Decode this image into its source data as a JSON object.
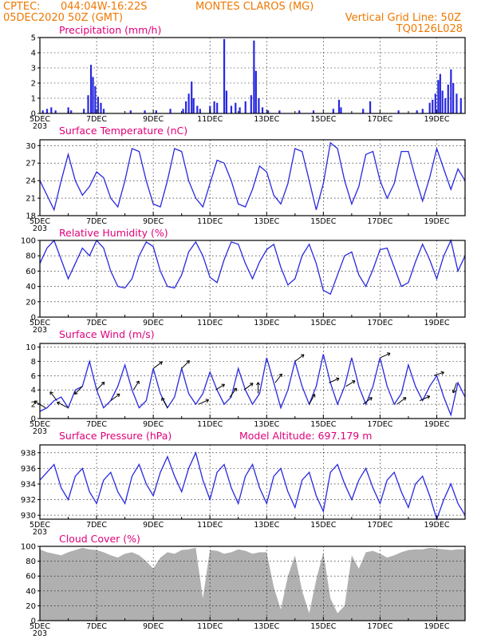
{
  "header": {
    "source": "CPTEC:",
    "location": "044:04W-16:22S",
    "city": "MONTES CLAROS (MG)",
    "run": "05DEC2020 50Z (GMT)",
    "vgrid": "Vertical Grid Line: 50Z",
    "code": "TQ0126L028"
  },
  "colors": {
    "header": "#f07800",
    "title": "#e0007a",
    "series": "#2828e0",
    "cloud": "#b0b0b0"
  },
  "chart_data": [
    {
      "type": "bar",
      "title": "Precipitation (mm/h)",
      "ylim": [
        0,
        5
      ],
      "yticks": [
        "0",
        "1",
        "2",
        "3",
        "4",
        "5"
      ],
      "xlabels": [
        "5DEC",
        "7DEC",
        "9DEC",
        "11DEC",
        "13DEC",
        "15DEC",
        "17DEC",
        "19DEC"
      ],
      "x_start_label": "203",
      "xlim_days": [
        5,
        20
      ],
      "values": [
        {
          "x": 5.1,
          "y": 0.2
        },
        {
          "x": 5.25,
          "y": 0.3
        },
        {
          "x": 5.4,
          "y": 0.4
        },
        {
          "x": 5.55,
          "y": 0.2
        },
        {
          "x": 6.0,
          "y": 0.4
        },
        {
          "x": 6.1,
          "y": 0.2
        },
        {
          "x": 6.55,
          "y": 0.3
        },
        {
          "x": 6.7,
          "y": 1.2
        },
        {
          "x": 6.8,
          "y": 3.2
        },
        {
          "x": 6.87,
          "y": 2.4
        },
        {
          "x": 6.95,
          "y": 1.8
        },
        {
          "x": 7.05,
          "y": 1.1
        },
        {
          "x": 7.15,
          "y": 0.7
        },
        {
          "x": 7.25,
          "y": 0.3
        },
        {
          "x": 8.2,
          "y": 0.2
        },
        {
          "x": 8.7,
          "y": 0.2
        },
        {
          "x": 9.1,
          "y": 0.2
        },
        {
          "x": 9.6,
          "y": 0.3
        },
        {
          "x": 10.05,
          "y": 0.3
        },
        {
          "x": 10.15,
          "y": 0.8
        },
        {
          "x": 10.25,
          "y": 1.3
        },
        {
          "x": 10.35,
          "y": 2.1
        },
        {
          "x": 10.42,
          "y": 1.0
        },
        {
          "x": 10.55,
          "y": 0.5
        },
        {
          "x": 10.65,
          "y": 0.3
        },
        {
          "x": 11.0,
          "y": 0.5
        },
        {
          "x": 11.15,
          "y": 0.8
        },
        {
          "x": 11.25,
          "y": 0.7
        },
        {
          "x": 11.5,
          "y": 4.9
        },
        {
          "x": 11.58,
          "y": 1.5
        },
        {
          "x": 11.75,
          "y": 0.5
        },
        {
          "x": 11.9,
          "y": 0.7
        },
        {
          "x": 12.05,
          "y": 0.4
        },
        {
          "x": 12.25,
          "y": 0.8
        },
        {
          "x": 12.45,
          "y": 1.2
        },
        {
          "x": 12.55,
          "y": 4.8
        },
        {
          "x": 12.62,
          "y": 2.8
        },
        {
          "x": 12.72,
          "y": 1.0
        },
        {
          "x": 12.85,
          "y": 0.4
        },
        {
          "x": 13.05,
          "y": 0.2
        },
        {
          "x": 13.45,
          "y": 0.2
        },
        {
          "x": 14.15,
          "y": 0.2
        },
        {
          "x": 14.65,
          "y": 0.2
        },
        {
          "x": 15.35,
          "y": 0.3
        },
        {
          "x": 15.55,
          "y": 0.9
        },
        {
          "x": 15.62,
          "y": 0.4
        },
        {
          "x": 16.4,
          "y": 0.3
        },
        {
          "x": 16.65,
          "y": 0.8
        },
        {
          "x": 17.65,
          "y": 0.2
        },
        {
          "x": 18.3,
          "y": 0.2
        },
        {
          "x": 18.5,
          "y": 0.3
        },
        {
          "x": 18.75,
          "y": 0.7
        },
        {
          "x": 18.85,
          "y": 0.9
        },
        {
          "x": 18.95,
          "y": 1.3
        },
        {
          "x": 19.05,
          "y": 2.2
        },
        {
          "x": 19.12,
          "y": 2.6
        },
        {
          "x": 19.2,
          "y": 1.5
        },
        {
          "x": 19.3,
          "y": 1.0
        },
        {
          "x": 19.4,
          "y": 1.9
        },
        {
          "x": 19.5,
          "y": 2.9
        },
        {
          "x": 19.58,
          "y": 2.0
        },
        {
          "x": 19.7,
          "y": 1.3
        },
        {
          "x": 19.85,
          "y": 1.0
        }
      ]
    },
    {
      "type": "line",
      "title": "Surface Temperature (nC)",
      "ylim": [
        18,
        31
      ],
      "yticks": [
        "18",
        "21",
        "24",
        "27",
        "30"
      ],
      "xlabels": [
        "5DEC",
        "7DEC",
        "9DEC",
        "11DEC",
        "13DEC",
        "15DEC",
        "17DEC",
        "19DEC"
      ],
      "x_start_label": "203",
      "x": [
        5.0,
        5.25,
        5.5,
        5.75,
        6.0,
        6.25,
        6.5,
        6.75,
        7.0,
        7.25,
        7.5,
        7.75,
        8.0,
        8.25,
        8.5,
        8.75,
        9.0,
        9.25,
        9.5,
        9.75,
        10.0,
        10.25,
        10.5,
        10.75,
        11.0,
        11.25,
        11.5,
        11.75,
        12.0,
        12.25,
        12.5,
        12.75,
        13.0,
        13.25,
        13.5,
        13.75,
        14.0,
        14.25,
        14.5,
        14.75,
        15.0,
        15.25,
        15.5,
        15.75,
        16.0,
        16.25,
        16.5,
        16.75,
        17.0,
        17.25,
        17.5,
        17.75,
        18.0,
        18.25,
        18.5,
        18.75,
        19.0,
        19.25,
        19.5,
        19.75,
        20.0
      ],
      "values": [
        24,
        21.5,
        19,
        24,
        28.5,
        24,
        21.5,
        23,
        25.5,
        24.5,
        21,
        19.5,
        24,
        29.5,
        29,
        24,
        20,
        19.5,
        24,
        29.5,
        29,
        24,
        21,
        19.5,
        23.5,
        27.5,
        27,
        24,
        20,
        19.5,
        22.5,
        26.5,
        25.5,
        21.5,
        20,
        23.5,
        29.5,
        29,
        24,
        19,
        23.5,
        30.5,
        29.5,
        24,
        20,
        23,
        28.5,
        29,
        24,
        21,
        23.5,
        29,
        29,
        24.5,
        20.5,
        24.5,
        29.5,
        26,
        22.5,
        26,
        24
      ]
    },
    {
      "type": "line",
      "title": "Relative Humidity (%)",
      "ylim": [
        0,
        100
      ],
      "yticks": [
        "0",
        "20",
        "40",
        "60",
        "80",
        "100"
      ],
      "xlabels": [
        "5DEC",
        "7DEC",
        "9DEC",
        "11DEC",
        "13DEC",
        "15DEC",
        "17DEC",
        "19DEC"
      ],
      "x_start_label": "203",
      "x": [
        5.0,
        5.25,
        5.5,
        5.75,
        6.0,
        6.25,
        6.5,
        6.75,
        7.0,
        7.25,
        7.5,
        7.75,
        8.0,
        8.25,
        8.5,
        8.75,
        9.0,
        9.25,
        9.5,
        9.75,
        10.0,
        10.25,
        10.5,
        10.75,
        11.0,
        11.25,
        11.5,
        11.75,
        12.0,
        12.25,
        12.5,
        12.75,
        13.0,
        13.25,
        13.5,
        13.75,
        14.0,
        14.25,
        14.5,
        14.75,
        15.0,
        15.25,
        15.5,
        15.75,
        16.0,
        16.25,
        16.5,
        16.75,
        17.0,
        17.25,
        17.5,
        17.75,
        18.0,
        18.25,
        18.5,
        18.75,
        19.0,
        19.25,
        19.5,
        19.75,
        20.0
      ],
      "values": [
        70,
        90,
        100,
        75,
        50,
        70,
        90,
        80,
        100,
        90,
        60,
        40,
        38,
        50,
        80,
        98,
        92,
        60,
        40,
        38,
        55,
        85,
        98,
        80,
        52,
        45,
        75,
        98,
        95,
        70,
        50,
        72,
        88,
        95,
        65,
        42,
        50,
        80,
        95,
        70,
        35,
        30,
        55,
        80,
        85,
        55,
        40,
        62,
        88,
        90,
        65,
        40,
        45,
        72,
        95,
        75,
        50,
        80,
        100,
        60,
        80
      ]
    },
    {
      "type": "line",
      "title": "Surface Wind (m/s)",
      "ylim": [
        0,
        10.5
      ],
      "yticks": [
        "0",
        "2",
        "4",
        "6",
        "8",
        "10"
      ],
      "xlabels": [
        "5DEC",
        "7DEC",
        "9DEC",
        "11DEC",
        "13DEC",
        "15DEC",
        "17DEC",
        "19DEC"
      ],
      "x_start_label": "203",
      "x": [
        5.0,
        5.25,
        5.5,
        5.75,
        6.0,
        6.25,
        6.5,
        6.75,
        7.0,
        7.25,
        7.5,
        7.75,
        8.0,
        8.25,
        8.5,
        8.75,
        9.0,
        9.25,
        9.5,
        9.75,
        10.0,
        10.25,
        10.5,
        10.75,
        11.0,
        11.25,
        11.5,
        11.75,
        12.0,
        12.25,
        12.5,
        12.75,
        13.0,
        13.25,
        13.5,
        13.75,
        14.0,
        14.25,
        14.5,
        14.75,
        15.0,
        15.25,
        15.5,
        15.75,
        16.0,
        16.25,
        16.5,
        16.75,
        17.0,
        17.25,
        17.5,
        17.75,
        18.0,
        18.25,
        18.5,
        18.75,
        19.0,
        19.25,
        19.5,
        19.75,
        20.0
      ],
      "values": [
        1,
        1.5,
        2.5,
        3,
        1.5,
        4,
        4.5,
        8,
        4,
        1.5,
        2.5,
        4.5,
        7.5,
        4,
        1.5,
        2.5,
        7,
        3.5,
        1.5,
        3,
        7,
        3.5,
        2,
        3.5,
        6.5,
        4,
        2,
        3,
        7,
        4,
        2,
        3.5,
        8.5,
        5,
        1.5,
        4,
        8,
        4.5,
        2,
        4.5,
        9,
        5,
        2,
        4.5,
        8.5,
        4.5,
        2,
        4.5,
        8.5,
        4.5,
        2,
        3.5,
        7.5,
        4.5,
        2.5,
        4.5,
        6,
        3,
        0.5,
        5,
        3
      ],
      "vectors": [
        {
          "x": 5.2,
          "dx": -1,
          "dy": 0.6
        },
        {
          "x": 5.6,
          "dx": -0.6,
          "dy": 0.8
        },
        {
          "x": 6.0,
          "dx": -1,
          "dy": 0.5
        },
        {
          "x": 6.5,
          "dx": -0.7,
          "dy": -0.7
        },
        {
          "x": 7.0,
          "dx": 0.7,
          "dy": 0.7
        },
        {
          "x": 7.5,
          "dx": 0.8,
          "dy": 0.6
        },
        {
          "x": 8.3,
          "dx": 0.5,
          "dy": 0.8
        },
        {
          "x": 9.0,
          "dx": 0.8,
          "dy": 0.6
        },
        {
          "x": 9.5,
          "dx": -0.5,
          "dy": 0.9
        },
        {
          "x": 10.0,
          "dx": 0.7,
          "dy": 0.7
        },
        {
          "x": 10.6,
          "dx": 0.9,
          "dy": 0.4
        },
        {
          "x": 11.2,
          "dx": 0.8,
          "dy": 0.5
        },
        {
          "x": 11.7,
          "dx": 0.6,
          "dy": 0.8
        },
        {
          "x": 12.2,
          "dx": 0.8,
          "dy": 0.6
        },
        {
          "x": 12.7,
          "dx": 0,
          "dy": 1
        },
        {
          "x": 13.3,
          "dx": 0.6,
          "dy": 0.8
        },
        {
          "x": 14.0,
          "dx": 0.8,
          "dy": 0.6
        },
        {
          "x": 14.5,
          "dx": 0.5,
          "dy": 0.9
        },
        {
          "x": 15.2,
          "dx": 0.9,
          "dy": 0.4
        },
        {
          "x": 15.8,
          "dx": 0.8,
          "dy": 0.5
        },
        {
          "x": 16.4,
          "dx": 0.8,
          "dy": 0.6
        },
        {
          "x": 17.0,
          "dx": 0.9,
          "dy": 0.4
        },
        {
          "x": 17.6,
          "dx": 0.8,
          "dy": 0.6
        },
        {
          "x": 18.4,
          "dx": 0.9,
          "dy": 0.4
        },
        {
          "x": 18.9,
          "dx": 0.9,
          "dy": 0.3
        },
        {
          "x": 19.7,
          "dx": -0.3,
          "dy": -0.9
        }
      ]
    },
    {
      "type": "line",
      "title": "Surface Pressure (hPa)",
      "subtitle": "Model Altitude: 697.179 m",
      "ylim": [
        929.5,
        939
      ],
      "yticks": [
        "930",
        "932",
        "934",
        "936",
        "938"
      ],
      "xlabels": [
        "5DEC",
        "7DEC",
        "9DEC",
        "11DEC",
        "13DEC",
        "15DEC",
        "17DEC",
        "19DEC"
      ],
      "x_start_label": "203",
      "x": [
        5.0,
        5.25,
        5.5,
        5.75,
        6.0,
        6.25,
        6.5,
        6.75,
        7.0,
        7.25,
        7.5,
        7.75,
        8.0,
        8.25,
        8.5,
        8.75,
        9.0,
        9.25,
        9.5,
        9.75,
        10.0,
        10.25,
        10.5,
        10.75,
        11.0,
        11.25,
        11.5,
        11.75,
        12.0,
        12.25,
        12.5,
        12.75,
        13.0,
        13.25,
        13.5,
        13.75,
        14.0,
        14.25,
        14.5,
        14.75,
        15.0,
        15.25,
        15.5,
        15.75,
        16.0,
        16.25,
        16.5,
        16.75,
        17.0,
        17.25,
        17.5,
        17.75,
        18.0,
        18.25,
        18.5,
        18.75,
        19.0,
        19.25,
        19.5,
        19.75,
        20.0
      ],
      "values": [
        934.5,
        935.5,
        936.5,
        933.5,
        932,
        935,
        936,
        933,
        931.5,
        934.5,
        935.5,
        933,
        931.5,
        935,
        936.5,
        934,
        932.5,
        935.5,
        937.5,
        935,
        933,
        936,
        938,
        934.5,
        932,
        935.5,
        936.5,
        933.5,
        931.5,
        935,
        936.5,
        933.5,
        931.5,
        935,
        936,
        933,
        931,
        934.5,
        935.5,
        932.5,
        930.5,
        935.5,
        936.5,
        934,
        932,
        934.5,
        936,
        933.5,
        931.5,
        934.5,
        935.5,
        933,
        931,
        934,
        935,
        932.5,
        929.5,
        932,
        934,
        931.5,
        930
      ]
    },
    {
      "type": "area",
      "title": "Cloud Cover (%)",
      "ylim": [
        0,
        100
      ],
      "yticks": [
        "0",
        "20",
        "40",
        "60",
        "80",
        "100"
      ],
      "xlabels": [
        "5DEC",
        "7DEC",
        "9DEC",
        "11DEC",
        "13DEC",
        "15DEC",
        "17DEC",
        "19DEC"
      ],
      "x_start_label": "203",
      "x": [
        5.0,
        5.25,
        5.5,
        5.75,
        6.0,
        6.25,
        6.5,
        6.75,
        7.0,
        7.25,
        7.5,
        7.75,
        8.0,
        8.25,
        8.5,
        8.75,
        9.0,
        9.25,
        9.5,
        9.75,
        10.0,
        10.25,
        10.5,
        10.75,
        11.0,
        11.25,
        11.5,
        11.75,
        12.0,
        12.25,
        12.5,
        12.75,
        13.0,
        13.25,
        13.5,
        13.75,
        14.0,
        14.25,
        14.5,
        14.75,
        15.0,
        15.25,
        15.5,
        15.75,
        16.0,
        16.25,
        16.5,
        16.75,
        17.0,
        17.25,
        17.5,
        17.75,
        18.0,
        18.25,
        18.5,
        18.75,
        19.0,
        19.25,
        19.5,
        19.75,
        20.0
      ],
      "values": [
        96,
        92,
        90,
        88,
        92,
        95,
        98,
        96,
        95,
        92,
        88,
        85,
        90,
        92,
        88,
        80,
        70,
        85,
        92,
        90,
        95,
        96,
        98,
        30,
        95,
        94,
        90,
        92,
        96,
        94,
        90,
        92,
        92,
        45,
        15,
        60,
        88,
        40,
        10,
        55,
        92,
        30,
        10,
        20,
        88,
        70,
        92,
        94,
        90,
        85,
        88,
        92,
        95,
        96,
        96,
        98,
        97,
        96,
        95,
        96,
        96
      ]
    }
  ]
}
